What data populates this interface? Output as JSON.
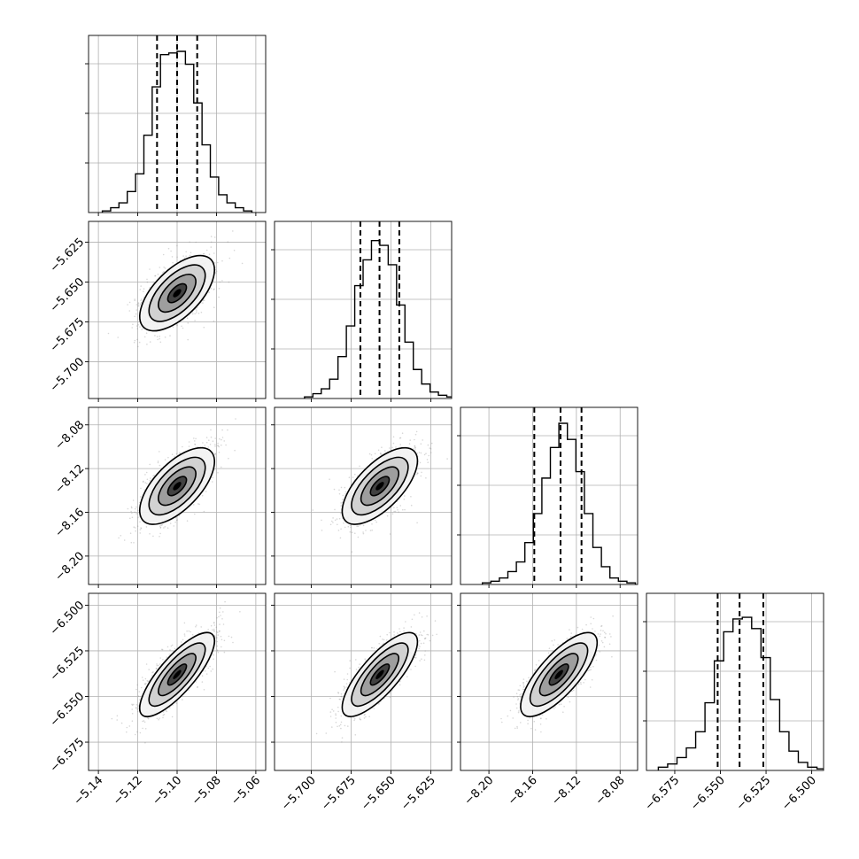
{
  "chart_data": {
    "type": "corner",
    "params": [
      {
        "xlim": [
          -5.145,
          -5.055
        ],
        "ticks": [
          -5.14,
          -5.12,
          -5.1,
          -5.08,
          -5.06
        ],
        "tick_labels": [
          "−5.14",
          "−5.12",
          "−5.10",
          "−5.08",
          "−5.06"
        ],
        "center": -5.1,
        "sigma": 0.0095,
        "quantiles": [
          -5.1102,
          -5.1,
          -5.0898
        ]
      },
      {
        "xlim": [
          -5.723,
          -5.612
        ],
        "ticks": [
          -5.7,
          -5.675,
          -5.65,
          -5.625
        ],
        "tick_labels": [
          "−5.700",
          "−5.675",
          "−5.650",
          "−5.625"
        ],
        "center": -5.657,
        "sigma": 0.0118,
        "quantiles": [
          -5.6692,
          -5.6572,
          -5.6448
        ]
      },
      {
        "xlim": [
          -8.226,
          -8.064
        ],
        "ticks": [
          -8.2,
          -8.16,
          -8.12,
          -8.08
        ],
        "tick_labels": [
          "−8.20",
          "−8.16",
          "−8.12",
          "−8.08"
        ],
        "center": -8.136,
        "sigma": 0.0175,
        "quantiles": [
          -8.1585,
          -8.1345,
          -8.1153
        ]
      },
      {
        "xlim": [
          -6.5905,
          -6.4935
        ],
        "ticks": [
          -6.575,
          -6.55,
          -6.525,
          -6.5
        ],
        "tick_labels": [
          "−6.575",
          "−6.550",
          "−6.525",
          "−6.500"
        ],
        "center": -6.538,
        "sigma": 0.0115,
        "quantiles": [
          -6.5515,
          -6.5395,
          -6.5265
        ]
      }
    ],
    "histograms": [
      {
        "param": 0,
        "counts": [
          1,
          3,
          6,
          13,
          24,
          48,
          78,
          98,
          99,
          100,
          92,
          68,
          42,
          22,
          11,
          6,
          3,
          1
        ]
      },
      {
        "param": 1,
        "counts": [
          1,
          3,
          6,
          12,
          26,
          45,
          70,
          86,
          98,
          95,
          83,
          58,
          35,
          18,
          9,
          4,
          2,
          1
        ]
      },
      {
        "param": 2,
        "counts": [
          1,
          2,
          4,
          8,
          14,
          26,
          44,
          66,
          85,
          100,
          90,
          70,
          44,
          23,
          11,
          4,
          2,
          1
        ]
      },
      {
        "param": 3,
        "counts": [
          2,
          4,
          8,
          14,
          24,
          42,
          68,
          86,
          94,
          95,
          88,
          70,
          44,
          24,
          12,
          5,
          2,
          1
        ]
      }
    ],
    "pairs": [
      {
        "x": 0,
        "y": 1,
        "correlation": 0.62
      },
      {
        "x": 0,
        "y": 2,
        "correlation": 0.64
      },
      {
        "x": 1,
        "y": 2,
        "correlation": 0.66
      },
      {
        "x": 0,
        "y": 3,
        "correlation": 0.8
      },
      {
        "x": 1,
        "y": 3,
        "correlation": 0.78
      },
      {
        "x": 2,
        "y": 3,
        "correlation": 0.76
      }
    ],
    "contour_levels_sigma": [
      0.5,
      1.0,
      1.5,
      2.0
    ],
    "grid": true,
    "quantile_line_style": "dashed",
    "title": "",
    "xlabel": "",
    "ylabel": ""
  }
}
